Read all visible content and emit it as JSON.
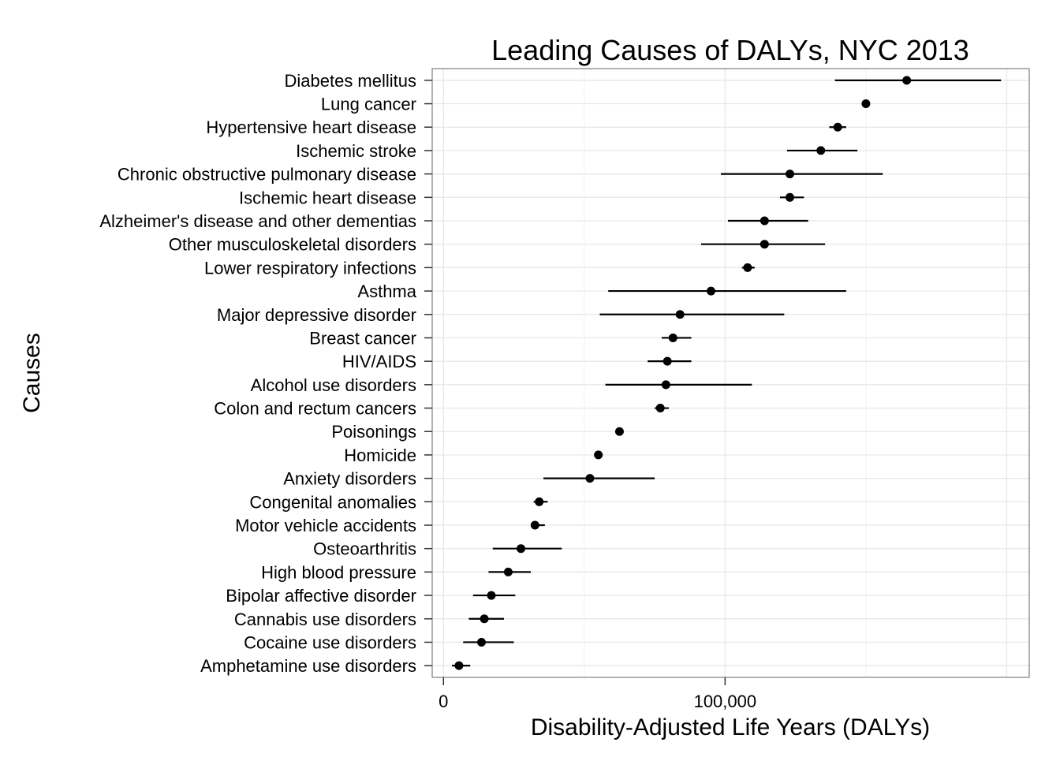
{
  "chart_data": {
    "type": "scatter",
    "title": "Leading Causes of DALYs, NYC 2013",
    "xlabel": "Disability-Adjusted Life Years (DALYs)",
    "ylabel": "Causes",
    "xlim": [
      -4000,
      208000
    ],
    "x_ticks": [
      {
        "value": 0,
        "label": "0"
      },
      {
        "value": 100000,
        "label": "100,000"
      }
    ],
    "grid": true,
    "legend": "none",
    "series": [
      {
        "points": [
          {
            "cause": "Diabetes mellitus",
            "value": 164500,
            "lower": 139000,
            "upper": 198000
          },
          {
            "cause": "Lung cancer",
            "value": 150000,
            "lower": 150000,
            "upper": 150000
          },
          {
            "cause": "Hypertensive heart disease",
            "value": 140000,
            "lower": 137000,
            "upper": 143000
          },
          {
            "cause": "Ischemic stroke",
            "value": 134000,
            "lower": 122000,
            "upper": 147000
          },
          {
            "cause": "Chronic obstructive pulmonary disease",
            "value": 123000,
            "lower": 98500,
            "upper": 156000
          },
          {
            "cause": "Ischemic heart disease",
            "value": 123000,
            "lower": 119500,
            "upper": 128000
          },
          {
            "cause": "Alzheimer's disease and other dementias",
            "value": 114000,
            "lower": 101000,
            "upper": 129500
          },
          {
            "cause": "Other musculoskeletal disorders",
            "value": 114000,
            "lower": 91500,
            "upper": 135500
          },
          {
            "cause": "Lower respiratory infections",
            "value": 108000,
            "lower": 106000,
            "upper": 110500
          },
          {
            "cause": "Asthma",
            "value": 95000,
            "lower": 58500,
            "upper": 143000
          },
          {
            "cause": "Major depressive disorder",
            "value": 84000,
            "lower": 55500,
            "upper": 121000
          },
          {
            "cause": "Breast cancer",
            "value": 81500,
            "lower": 77500,
            "upper": 88000
          },
          {
            "cause": "HIV/AIDS",
            "value": 79500,
            "lower": 72500,
            "upper": 88000
          },
          {
            "cause": "Alcohol use disorders",
            "value": 79000,
            "lower": 57500,
            "upper": 109500
          },
          {
            "cause": "Colon and rectum cancers",
            "value": 77000,
            "lower": 75000,
            "upper": 80000
          },
          {
            "cause": "Poisonings",
            "value": 62500,
            "lower": 62500,
            "upper": 62500
          },
          {
            "cause": "Homicide",
            "value": 55000,
            "lower": 55000,
            "upper": 55000
          },
          {
            "cause": "Anxiety disorders",
            "value": 52000,
            "lower": 35500,
            "upper": 75000
          },
          {
            "cause": "Congenital anomalies",
            "value": 34000,
            "lower": 32000,
            "upper": 37000
          },
          {
            "cause": "Motor vehicle accidents",
            "value": 32500,
            "lower": 31000,
            "upper": 36000
          },
          {
            "cause": "Osteoarthritis",
            "value": 27500,
            "lower": 17500,
            "upper": 42000
          },
          {
            "cause": "High blood pressure",
            "value": 23000,
            "lower": 16000,
            "upper": 31000
          },
          {
            "cause": "Bipolar affective disorder",
            "value": 17000,
            "lower": 10500,
            "upper": 25500
          },
          {
            "cause": "Cannabis use disorders",
            "value": 14500,
            "lower": 9000,
            "upper": 21500
          },
          {
            "cause": "Cocaine use disorders",
            "value": 13500,
            "lower": 7000,
            "upper": 25000
          },
          {
            "cause": "Amphetamine use disorders",
            "value": 5500,
            "lower": 3000,
            "upper": 9500
          }
        ]
      }
    ]
  }
}
